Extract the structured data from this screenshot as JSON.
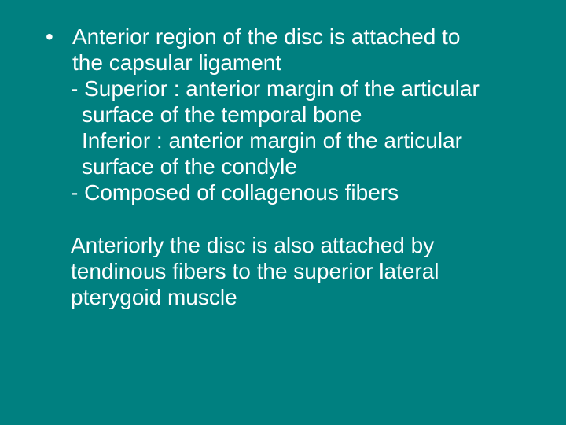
{
  "slide": {
    "background_color": "#008080",
    "text_color": "#ffffff",
    "font_family": "Arial",
    "font_size_pt": 21,
    "line_height": 1.18,
    "bullet_glyph": "•",
    "main": {
      "line1": "Anterior region of the disc is attached to",
      "line2": "the capsular ligament",
      "sub1_line1": "- Superior : anterior margin of the articular",
      "sub1_line2": "surface of the temporal bone",
      "sub1_line3": "Inferior : anterior margin of the articular",
      "sub1_line4": "surface of the condyle",
      "sub2_line1": "- Composed of collagenous fibers"
    },
    "para": {
      "line1": "Anteriorly the disc is also attached by",
      "line2": "tendinous fibers to the superior lateral",
      "line3": "pterygoid muscle"
    }
  }
}
